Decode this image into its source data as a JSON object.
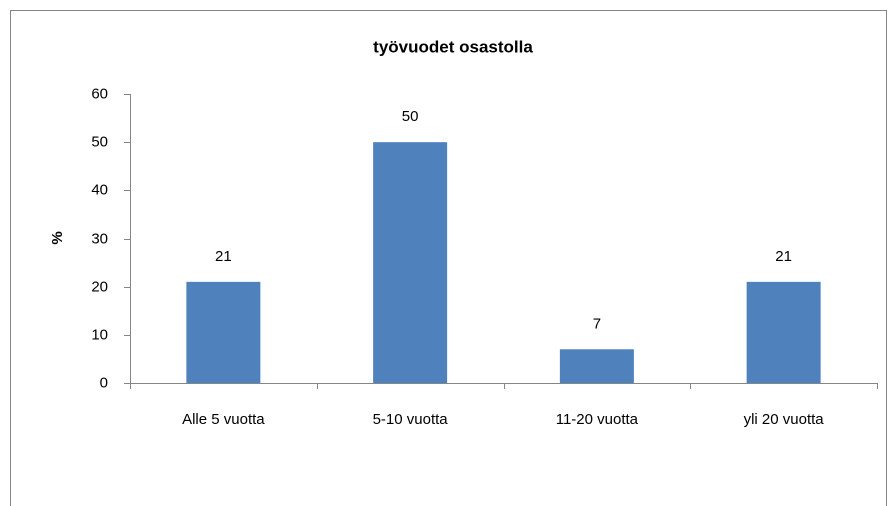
{
  "chart_data": {
    "type": "bar",
    "title": "työvuodet osastolla",
    "y_label": "%",
    "categories": [
      "Alle 5 vuotta",
      "5-10 vuotta",
      "11-20 vuotta",
      "yli 20 vuotta"
    ],
    "values": [
      21,
      50,
      7,
      21
    ],
    "color": "#4f81bd",
    "ylim": [
      0,
      60
    ],
    "yticks": [
      0,
      10,
      20,
      30,
      40,
      50,
      60
    ],
    "grid": false,
    "data_labels": true
  }
}
